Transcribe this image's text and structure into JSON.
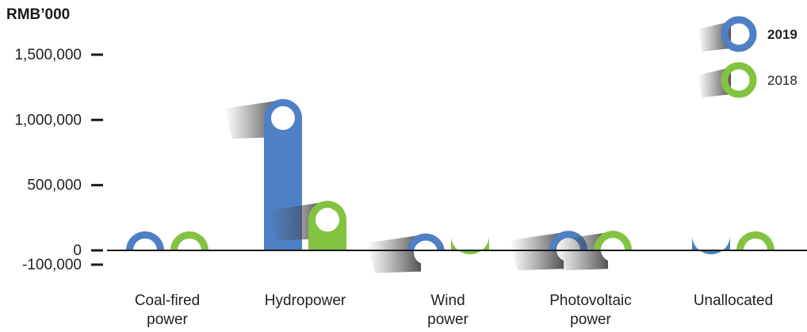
{
  "chart_data": {
    "type": "bar",
    "ylabel": "RMB’000",
    "categories": [
      [
        "Coal-fired",
        "power"
      ],
      [
        "Hydropower"
      ],
      [
        "Wind",
        "power"
      ],
      [
        "Photovoltaic",
        "power"
      ],
      [
        "Unallocated"
      ]
    ],
    "series": [
      {
        "name": "2019",
        "color": "#4f7fc4",
        "values": [
          0,
          1160000,
          130000,
          150000,
          -30000
        ]
      },
      {
        "name": "2018",
        "color": "#82c341",
        "values": [
          0,
          380000,
          -30000,
          150000,
          0
        ]
      }
    ],
    "yticks": [
      {
        "value": 1500000,
        "label": "1,500,000"
      },
      {
        "value": 1000000,
        "label": "1,000,000"
      },
      {
        "value": 500000,
        "label": "500,000"
      },
      {
        "value": 0,
        "label": "0"
      },
      {
        "value": -100000,
        "label": "-100,000"
      }
    ],
    "ylim": [
      -100000,
      1500000
    ],
    "legend_position": "top-right",
    "grid": false
  }
}
